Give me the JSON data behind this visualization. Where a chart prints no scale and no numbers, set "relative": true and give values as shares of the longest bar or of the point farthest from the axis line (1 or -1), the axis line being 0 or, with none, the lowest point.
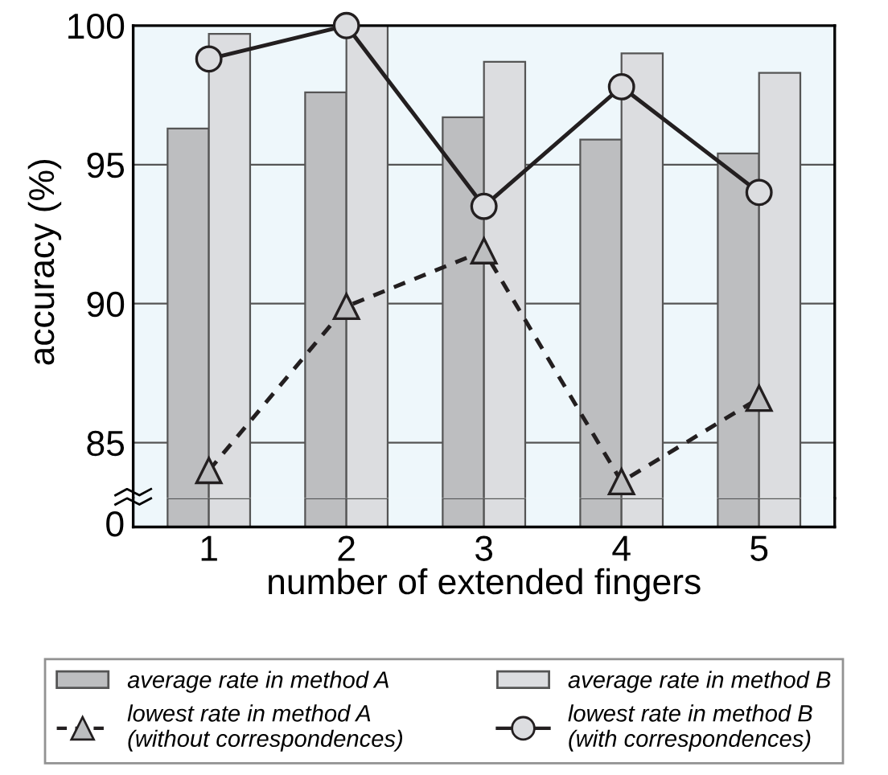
{
  "chart_data": [
    {
      "type": "bar",
      "ylabel": "accuracy (%)",
      "categories": [
        "1",
        "2",
        "3",
        "4",
        "5"
      ],
      "series": [
        {
          "name": "average rate in method A",
          "color": "#bdbec0",
          "values": [
            96.3,
            97.6,
            96.7,
            95.9,
            95.4
          ]
        },
        {
          "name": "average rate in method B",
          "color": "#dcdde0",
          "values": [
            99.7,
            100,
            98.7,
            99.0,
            98.3
          ]
        },
        {
          "name": "lowest rate in method A\n(without correspondences)",
          "type": "line",
          "color": "#231f20",
          "marker": "triangle",
          "line_style": "dashed",
          "values": [
            84.0,
            89.9,
            91.9,
            83.6,
            86.6
          ]
        },
        {
          "name": "lowest rate in method B\n(with correspondences)",
          "type": "line",
          "color": "#231f20",
          "marker": "circle",
          "line_style": "solid",
          "values": [
            98.8,
            100,
            93.5,
            97.8,
            94.0
          ]
        }
      ],
      "ylim": [
        83,
        100
      ],
      "yticks": [
        85,
        90,
        95,
        100
      ],
      "tick_labels": "y",
      "grid": "y",
      "legend": "bottom"
    },
    {
      "type": "bar",
      "xlabel": "number of extended fingers",
      "categories": [
        "1",
        "2",
        "3",
        "4",
        "5"
      ],
      "series": [
        {
          "color": "#bdbec0",
          "values": [
            1,
            1,
            1,
            1,
            1
          ]
        },
        {
          "color": "#dcdde0",
          "values": [
            1,
            1,
            1,
            1,
            1
          ]
        }
      ],
      "relative": true,
      "annotations": [
        "0"
      ]
    }
  ]
}
